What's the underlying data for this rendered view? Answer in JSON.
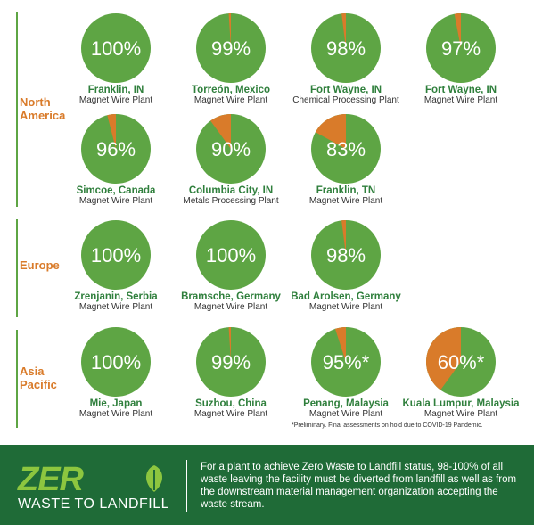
{
  "colors": {
    "green": "#5ea544",
    "orange": "#d97b2a",
    "dark_green": "#1f6b37",
    "lime": "#8dc63f"
  },
  "regions": [
    {
      "label_lines": [
        "North",
        "America"
      ]
    },
    {
      "label_lines": [
        "Europe"
      ]
    },
    {
      "label_lines": [
        "Asia",
        "Pacific"
      ]
    }
  ],
  "chart_data": {
    "type": "pie",
    "title": "",
    "series_meaning": "percent of waste diverted from landfill",
    "plants": [
      {
        "region": "North America",
        "location": "Franklin, IN",
        "plant_type": "Magnet Wire Plant",
        "value": 100,
        "label": "100%"
      },
      {
        "region": "North America",
        "location": "Torreón, Mexico",
        "plant_type": "Magnet Wire Plant",
        "value": 99,
        "label": "99%"
      },
      {
        "region": "North America",
        "location": "Fort Wayne, IN",
        "plant_type": "Chemical Processing Plant",
        "value": 98,
        "label": "98%"
      },
      {
        "region": "North America",
        "location": "Fort Wayne, IN",
        "plant_type": "Magnet Wire Plant",
        "value": 97,
        "label": "97%"
      },
      {
        "region": "North America",
        "location": "Simcoe, Canada",
        "plant_type": "Magnet Wire Plant",
        "value": 96,
        "label": "96%"
      },
      {
        "region": "North America",
        "location": "Columbia City, IN",
        "plant_type": "Metals Processing Plant",
        "value": 90,
        "label": "90%"
      },
      {
        "region": "North America",
        "location": "Franklin, TN",
        "plant_type": "Magnet Wire Plant",
        "value": 83,
        "label": "83%"
      },
      {
        "region": "Europe",
        "location": "Zrenjanin, Serbia",
        "plant_type": "Magnet Wire Plant",
        "value": 100,
        "label": "100%"
      },
      {
        "region": "Europe",
        "location": "Bramsche, Germany",
        "plant_type": "Magnet Wire Plant",
        "value": 100,
        "label": "100%"
      },
      {
        "region": "Europe",
        "location": "Bad Arolsen, Germany",
        "plant_type": "Magnet Wire Plant",
        "value": 98,
        "label": "98%"
      },
      {
        "region": "Asia Pacific",
        "location": "Mie, Japan",
        "plant_type": "Magnet Wire Plant",
        "value": 100,
        "label": "100%"
      },
      {
        "region": "Asia Pacific",
        "location": "Suzhou, China",
        "plant_type": "Magnet Wire Plant",
        "value": 99,
        "label": "99%"
      },
      {
        "region": "Asia Pacific",
        "location": "Penang, Malaysia",
        "plant_type": "Magnet Wire Plant",
        "value": 95,
        "label": "95%*"
      },
      {
        "region": "Asia Pacific",
        "location": "Kuala Lumpur, Malaysia",
        "plant_type": "Magnet Wire Plant",
        "value": 60,
        "label": "60%*"
      }
    ]
  },
  "footnote": "*Preliminary. Final assessments on hold due to COVID-19 Pandemic.",
  "footer": {
    "logo_main": "ZER",
    "logo_sub": "WASTE TO LANDFILL",
    "description": "For a plant to achieve Zero Waste to Landfill status, 98-100% of all waste leaving the facility must be diverted from landfill as well as from the downstream material management organization accepting the waste stream."
  }
}
